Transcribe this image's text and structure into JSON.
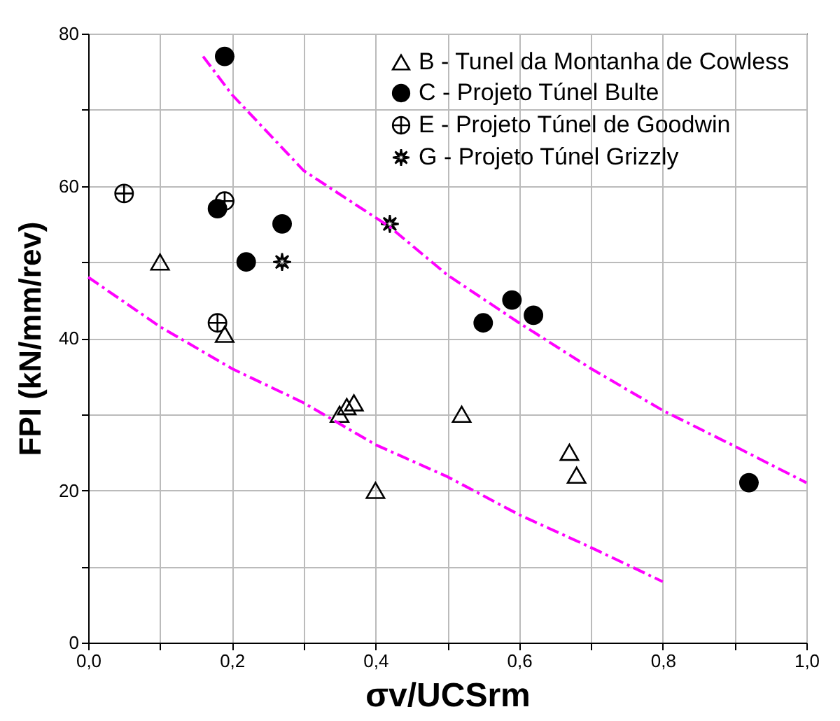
{
  "chart_data": {
    "type": "scatter",
    "xlabel": "σv/UCSrm",
    "ylabel": "FPI (kN/mm/rev)",
    "xlim": [
      0,
      1
    ],
    "ylim": [
      0,
      80
    ],
    "xticks": [
      {
        "value": 0,
        "label": "0,0"
      },
      {
        "value": 0.1,
        "label": null
      },
      {
        "value": 0.2,
        "label": "0,2"
      },
      {
        "value": 0.3,
        "label": null
      },
      {
        "value": 0.4,
        "label": "0,4"
      },
      {
        "value": 0.5,
        "label": null
      },
      {
        "value": 0.6,
        "label": "0,6"
      },
      {
        "value": 0.7,
        "label": null
      },
      {
        "value": 0.8,
        "label": "0,8"
      },
      {
        "value": 0.9,
        "label": null
      },
      {
        "value": 1,
        "label": "1,0"
      }
    ],
    "yticks": [
      0,
      {
        "value": 10,
        "label": null
      },
      20,
      {
        "value": 30,
        "label": null
      },
      40,
      {
        "value": 50,
        "label": null
      },
      60,
      {
        "value": 70,
        "label": null
      },
      80
    ],
    "grid": true,
    "legend": "top right",
    "series": [
      {
        "name": "B - Tunel da Montanha de Cowless",
        "color": "#000000",
        "marker": "triangle",
        "x": [
          0.1,
          0.19,
          0.35,
          0.36,
          0.37,
          0.4,
          0.52,
          0.67,
          0.68
        ],
        "values": [
          50,
          40.5,
          30,
          31,
          31.5,
          20,
          30,
          25,
          22
        ]
      },
      {
        "name": "C - Projeto Túnel Bulte",
        "color": "#000000",
        "marker": "circle",
        "x": [
          0.19,
          0.18,
          0.27,
          0.22,
          0.55,
          0.59,
          0.62,
          0.92
        ],
        "values": [
          77,
          57,
          55,
          50,
          42,
          45,
          43,
          21
        ]
      },
      {
        "name": "E - Projeto Túnel de Goodwin",
        "color": "#000000",
        "marker": "cross",
        "x": [
          0.05,
          0.19,
          0.18
        ],
        "values": [
          59,
          58,
          42
        ]
      },
      {
        "name": "G - Projeto Túnel Grizzly",
        "color": "#000000",
        "marker": "star",
        "x": [
          0.27,
          0.42
        ],
        "values": [
          50,
          55
        ]
      },
      {
        "type": "line",
        "color": "#ff00ff",
        "line_style": "dashed",
        "x": [
          0.16,
          0.2,
          0.3,
          0.42,
          0.5,
          0.6,
          0.7,
          0.8,
          0.9,
          1.0
        ],
        "values": [
          77,
          72,
          62,
          54.6,
          48.3,
          42,
          36,
          30.5,
          25.8,
          21
        ]
      },
      {
        "type": "line",
        "color": "#ff00ff",
        "line_style": "dashed",
        "x": [
          0,
          0.1,
          0.2,
          0.3,
          0.4,
          0.5,
          0.6,
          0.7,
          0.8
        ],
        "values": [
          48,
          41.5,
          36,
          31.5,
          26,
          21.8,
          16.8,
          12.5,
          8
        ]
      }
    ]
  }
}
